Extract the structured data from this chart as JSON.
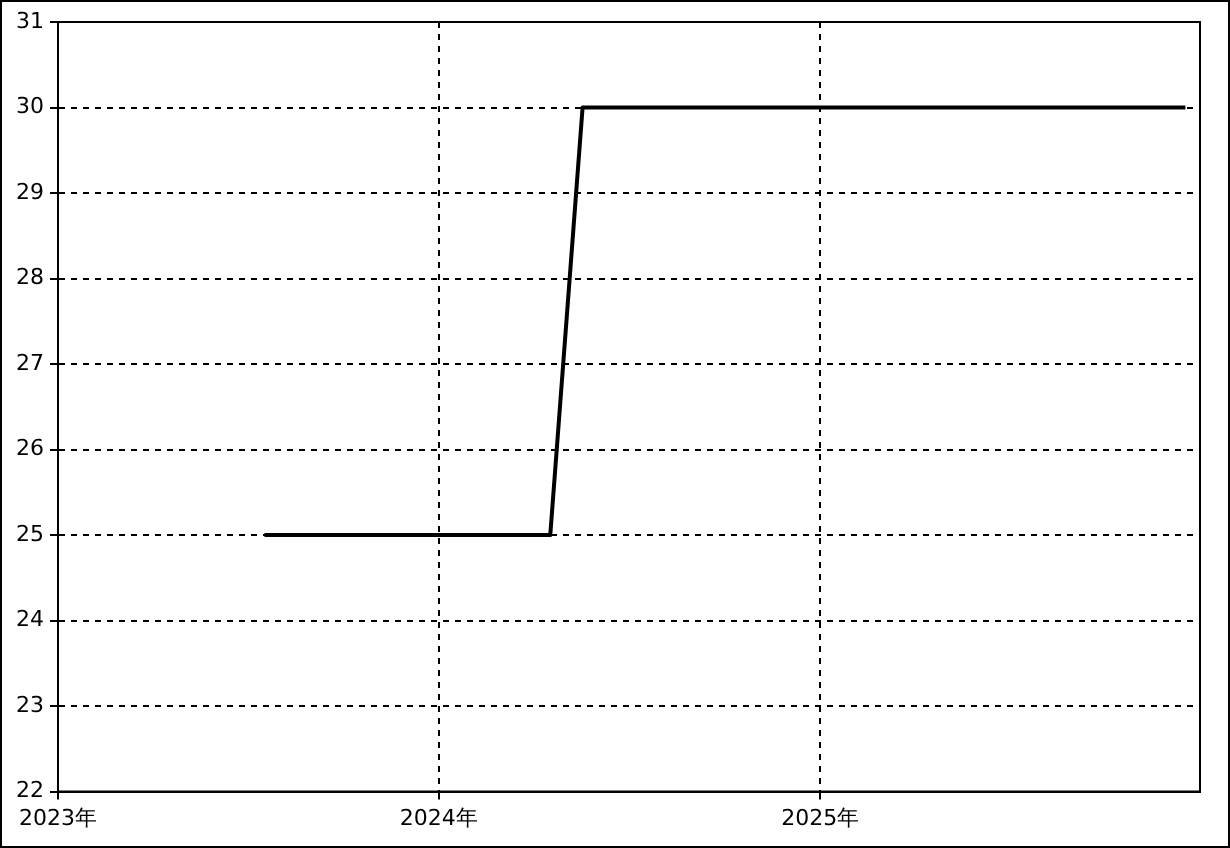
{
  "chart_data": {
    "type": "line",
    "x": [
      "2023-07-18",
      "2024-04-17",
      "2024-05-18",
      "2025-12-17"
    ],
    "series": [
      {
        "color": "#000000",
        "values": [
          25,
          25,
          30,
          30
        ]
      }
    ],
    "xlim": [
      "2023-01-01",
      "2025-12-31"
    ],
    "xticks": [
      {
        "value": "2023",
        "label": "2023年"
      },
      {
        "value": "2024",
        "label": "2024年"
      },
      {
        "value": "2025",
        "label": "2025年"
      }
    ],
    "ylim": [
      22,
      31
    ],
    "yticks": [
      22,
      23,
      24,
      25,
      26,
      27,
      28,
      29,
      30,
      31
    ],
    "grid": true,
    "legend": false,
    "marker": "none",
    "line_style": "solid"
  }
}
